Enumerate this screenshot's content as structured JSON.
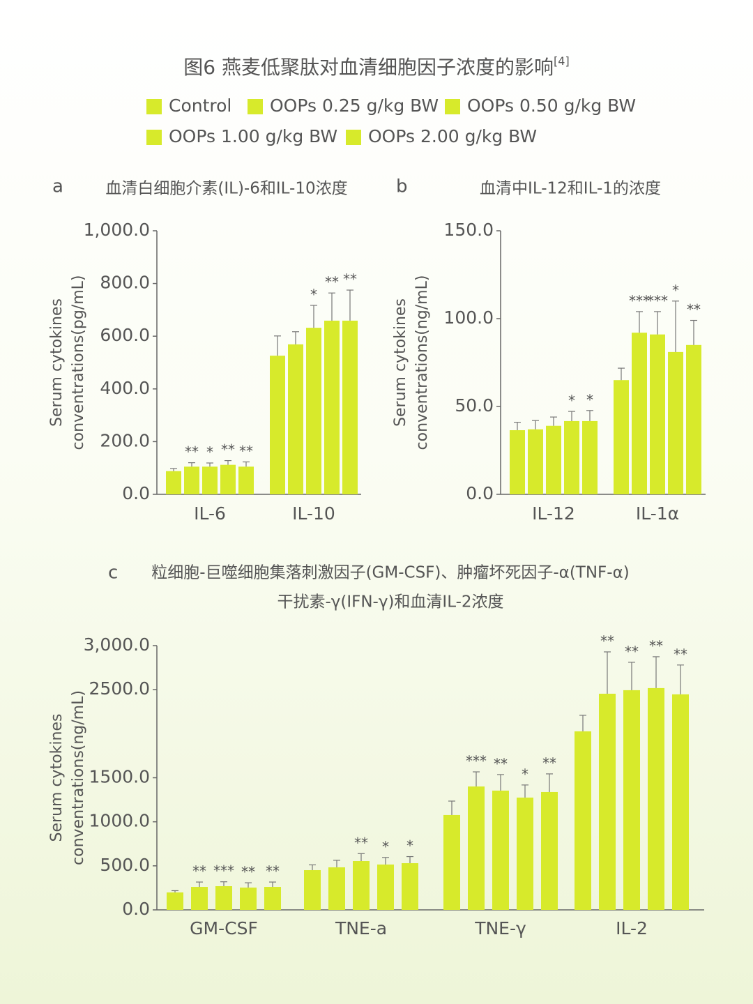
{
  "title": "图6 燕麦低聚肽对血清细胞因子浓度的影响",
  "title_ref": "[4]",
  "chart_data": [
    {
      "type": "bar",
      "label": "a",
      "title": "血清白细胞介素(IL)-6和IL-10浓度",
      "ylabel": [
        "Serum cytokines",
        "conventrations(pg/mL)"
      ],
      "categories": [
        "IL-6",
        "IL-10"
      ],
      "ylim": [
        0,
        1000
      ],
      "yticks": [
        {
          "value": 0,
          "label": "0.0"
        },
        {
          "value": 200,
          "label": "200.0"
        },
        {
          "value": 400,
          "label": "400.0"
        },
        {
          "value": 600,
          "label": "600.0"
        },
        {
          "value": 800,
          "label": "800.0"
        },
        {
          "value": 1000,
          "label": "1,000.0"
        }
      ],
      "series": [
        {
          "name": "Control",
          "color": "#d7ea2b",
          "values": [
            88,
            526
          ],
          "errors": [
            10,
            75
          ],
          "annotations": [
            null,
            null
          ]
        },
        {
          "name": "OOPs 0.25 g/kg BW",
          "color": "#d7ea2b",
          "values": [
            105,
            569
          ],
          "errors": [
            15,
            48
          ],
          "annotations": [
            "**",
            null
          ]
        },
        {
          "name": "OOPs 0.50 g/kg BW",
          "color": "#d7ea2b",
          "values": [
            105,
            632
          ],
          "errors": [
            14,
            85
          ],
          "annotations": [
            "*",
            "*"
          ]
        },
        {
          "name": "OOPs 1.00 g/kg BW",
          "color": "#d7ea2b",
          "values": [
            112,
            659
          ],
          "errors": [
            16,
            105
          ],
          "annotations": [
            "**",
            "**"
          ]
        },
        {
          "name": "OOPs 2.00 g/kg BW",
          "color": "#d7ea2b",
          "values": [
            105,
            659
          ],
          "errors": [
            18,
            116
          ],
          "annotations": [
            "**",
            "**"
          ]
        }
      ]
    },
    {
      "type": "bar",
      "label": "b",
      "title": "血清中IL-12和IL-1的浓度",
      "ylabel": [
        "Serum cytokines",
        "conventrations(ng/mL)"
      ],
      "categories": [
        "IL-12",
        "IL-1α"
      ],
      "ylim": [
        0,
        150
      ],
      "yticks": [
        {
          "value": 0,
          "label": "0.0"
        },
        {
          "value": 50,
          "label": "50.0"
        },
        {
          "value": 100,
          "label": "100.0"
        },
        {
          "value": 150,
          "label": "150.0"
        }
      ],
      "series": [
        {
          "color": "#d7ea2b",
          "values": [
            36.5,
            65
          ],
          "errors": [
            4.5,
            6.8
          ],
          "annotations": [
            null,
            null
          ]
        },
        {
          "color": "#d7ea2b",
          "values": [
            37,
            92
          ],
          "errors": [
            5,
            12
          ],
          "annotations": [
            null,
            "***"
          ]
        },
        {
          "color": "#d7ea2b",
          "values": [
            39,
            91
          ],
          "errors": [
            5,
            13
          ],
          "annotations": [
            null,
            "***"
          ]
        },
        {
          "color": "#d7ea2b",
          "values": [
            41.7,
            81
          ],
          "errors": [
            5.5,
            29
          ],
          "annotations": [
            "*",
            "*"
          ]
        },
        {
          "color": "#d7ea2b",
          "values": [
            41.7,
            85
          ],
          "errors": [
            6,
            14
          ],
          "annotations": [
            "*",
            "**"
          ]
        }
      ]
    },
    {
      "type": "bar",
      "label": "c",
      "title": [
        "粒细胞-巨噬细胞集落刺激因子(GM-CSF)、肿瘤坏死因子-α(TNF-α)",
        "干扰素-γ(IFN-γ)和血清IL-2浓度"
      ],
      "ylabel": [
        "Serum cytokines",
        "conventrations(ng/mL)"
      ],
      "categories": [
        "GM-CSF",
        "TNE-a",
        "TNE-γ",
        "IL-2"
      ],
      "ylim": [
        0,
        3000
      ],
      "yticks": [
        {
          "value": 0,
          "label": "0.0"
        },
        {
          "value": 500,
          "label": "500.0"
        },
        {
          "value": 1000,
          "label": "1000.0"
        },
        {
          "value": 1500,
          "label": "1500.0"
        },
        {
          "value": 2500,
          "label": "2500.0"
        },
        {
          "value": 3000,
          "label": "3,000.0"
        }
      ],
      "series": [
        {
          "color": "#d7ea2b",
          "values": [
            198,
            451,
            1077,
            2027
          ],
          "errors": [
            20,
            60,
            158,
            182
          ],
          "annotations": [
            null,
            null,
            null,
            null
          ]
        },
        {
          "color": "#d7ea2b",
          "values": [
            261,
            483,
            1401,
            2454
          ],
          "errors": [
            55,
            80,
            166,
            475
          ],
          "annotations": [
            "**",
            null,
            "***",
            "**"
          ]
        },
        {
          "color": "#d7ea2b",
          "values": [
            269,
            554,
            1354,
            2494
          ],
          "errors": [
            50,
            85,
            182,
            317
          ],
          "annotations": [
            "***",
            "**",
            "**",
            "**"
          ]
        },
        {
          "color": "#d7ea2b",
          "values": [
            253,
            515,
            1275,
            2518
          ],
          "errors": [
            55,
            80,
            143,
            356
          ],
          "annotations": [
            "**",
            "*",
            "*",
            "**"
          ]
        },
        {
          "color": "#d7ea2b",
          "values": [
            261,
            530,
            1338,
            2447
          ],
          "errors": [
            55,
            75,
            206,
            333
          ],
          "annotations": [
            "**",
            "*",
            "**",
            "**"
          ]
        }
      ]
    }
  ]
}
